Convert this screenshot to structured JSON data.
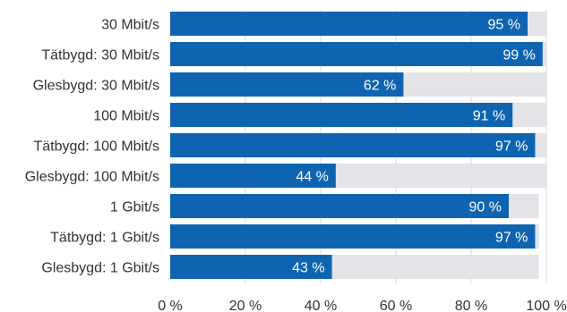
{
  "chart_data": {
    "type": "bar",
    "orientation": "horizontal",
    "title": "",
    "xlabel": "",
    "ylabel": "",
    "xlim": [
      0,
      100
    ],
    "x_ticks": [
      "0 %",
      "20 %",
      "40 %",
      "60 %",
      "80 %",
      "100 %"
    ],
    "grid": true,
    "categories": [
      "30 Mbit/s",
      "Tätbygd: 30 Mbit/s",
      "Glesbygd: 30 Mbit/s",
      "100 Mbit/s",
      "Tätbygd: 100 Mbit/s",
      "Glesbygd: 100 Mbit/s",
      "1 Gbit/s",
      "Tätbygd: 1 Gbit/s",
      "Glesbygd: 1 Gbit/s"
    ],
    "values": [
      95,
      99,
      62,
      91,
      97,
      44,
      90,
      97,
      43
    ],
    "data_labels": [
      "95 %",
      "99 %",
      "62 %",
      "91 %",
      "97 %",
      "44 %",
      "90 %",
      "97 %",
      "43 %"
    ],
    "background_values": [
      100,
      100,
      100,
      100,
      100,
      100,
      98,
      98,
      98
    ],
    "colors": {
      "bar": "#0f64b1",
      "background_bar": "#e3e3e8"
    }
  }
}
